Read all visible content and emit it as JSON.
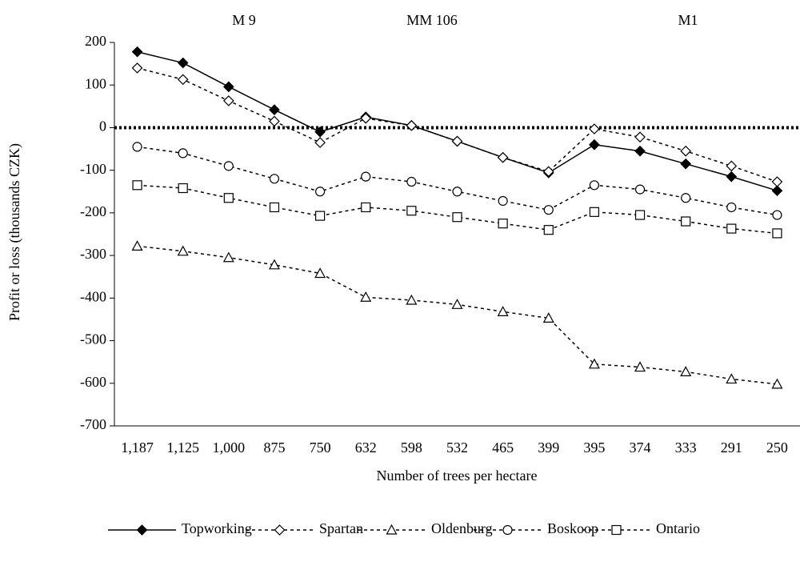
{
  "chart_data": {
    "type": "line",
    "annotations": [
      "M 9",
      "MM 106",
      "M1"
    ],
    "x_label": "Number of trees per  hectare",
    "y_label": "Profit or loss (thousands CZK)",
    "categories": [
      "1,187",
      "1,125",
      "1,000",
      "875",
      "750",
      "632",
      "598",
      "532",
      "465",
      "399",
      "395",
      "374",
      "333",
      "291",
      "250"
    ],
    "series": [
      {
        "name": "Topworking",
        "color": "#000000",
        "marker": "diamond-filled",
        "dash": "solid",
        "values": [
          178,
          152,
          96,
          42,
          -10,
          25,
          5,
          -32,
          -70,
          -106,
          -40,
          -55,
          -85,
          -115,
          -148
        ]
      },
      {
        "name": "Spartan",
        "color": "#000000",
        "marker": "diamond",
        "dash": "dashed",
        "values": [
          140,
          113,
          63,
          15,
          -35,
          22,
          5,
          -32,
          -70,
          -103,
          -3,
          -22,
          -55,
          -90,
          -127
        ]
      },
      {
        "name": "Oldenburg",
        "color": "#000000",
        "marker": "triangle",
        "dash": "dashed",
        "values": [
          -278,
          -290,
          -305,
          -322,
          -342,
          -398,
          -405,
          -415,
          -432,
          -447,
          -555,
          -562,
          -573,
          -590,
          -602
        ]
      },
      {
        "name": "Boskoop",
        "color": "#000000",
        "marker": "circle",
        "dash": "dashed",
        "values": [
          -45,
          -60,
          -90,
          -120,
          -150,
          -115,
          -127,
          -150,
          -172,
          -193,
          -135,
          -145,
          -165,
          -187,
          -205
        ]
      },
      {
        "name": "Ontario",
        "color": "#000000",
        "marker": "square",
        "dash": "dashed",
        "values": [
          -135,
          -142,
          -165,
          -187,
          -207,
          -187,
          -195,
          -210,
          -225,
          -240,
          -198,
          -205,
          -220,
          -237,
          -248
        ]
      }
    ],
    "ylim": [
      -700,
      200
    ],
    "yticks": [
      -700,
      -600,
      -500,
      -400,
      -300,
      -200,
      -100,
      0,
      100,
      200
    ],
    "zero_line": true,
    "legend": "bottom"
  }
}
